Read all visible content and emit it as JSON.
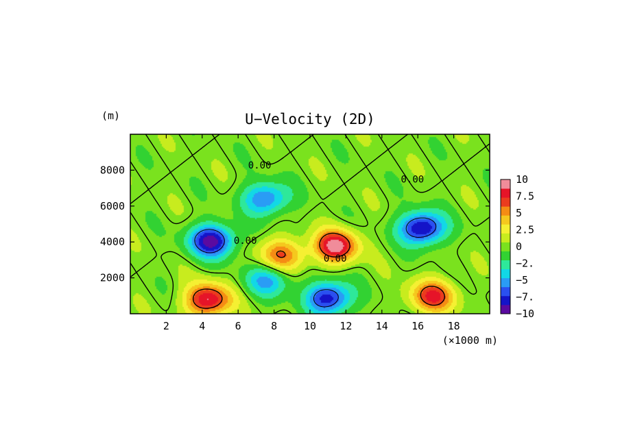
{
  "chart_data": {
    "type": "heatmap",
    "title": "U−Velocity (2D)",
    "ylabel": "(m)",
    "xlabel": "(×1000 m)",
    "xlim": [
      0,
      20
    ],
    "ylim": [
      0,
      10000
    ],
    "x_ticks": [
      2,
      4,
      6,
      8,
      10,
      12,
      14,
      16,
      18
    ],
    "x_tick_labels": [
      "2",
      "4",
      "6",
      "8",
      "10",
      "12",
      "14",
      "16",
      "18"
    ],
    "y_ticks": [
      2000,
      4000,
      6000,
      8000
    ],
    "y_tick_labels": [
      "2000",
      "4000",
      "6000",
      "8000"
    ],
    "colorbar": {
      "range": [
        -10,
        10
      ],
      "tick_labels": [
        "10",
        "7.5",
        "5",
        "2.5",
        "0",
        "−2.",
        "−5",
        "−7.",
        "−10"
      ],
      "tick_values": [
        10,
        7.5,
        5,
        2.5,
        0,
        -2.5,
        -5,
        -7.5,
        -10
      ]
    },
    "contour_labels": [
      {
        "text": "0.00",
        "x": 7.2,
        "y": 8100
      },
      {
        "text": "0.00",
        "x": 15.7,
        "y": 7300
      },
      {
        "text": "0.00",
        "x": 6.4,
        "y": 3900
      },
      {
        "text": "0.00",
        "x": 11.4,
        "y": 2900
      }
    ],
    "features": [
      {
        "kind": "min",
        "x": 4.5,
        "y": 4100,
        "value": -9.5
      },
      {
        "kind": "min",
        "x": 16.2,
        "y": 4800,
        "value": -9.5
      },
      {
        "kind": "min",
        "x": 11.0,
        "y": 900,
        "value": -8.5
      },
      {
        "kind": "min",
        "x": 7.5,
        "y": 6450,
        "value": -6.5
      },
      {
        "kind": "min",
        "x": 7.6,
        "y": 1900,
        "value": -5.0
      },
      {
        "kind": "max",
        "x": 11.4,
        "y": 3800,
        "value": 9.5
      },
      {
        "kind": "max",
        "x": 4.3,
        "y": 800,
        "value": 9.0
      },
      {
        "kind": "max",
        "x": 16.8,
        "y": 1000,
        "value": 7.5
      },
      {
        "kind": "max",
        "x": 8.4,
        "y": 3300,
        "value": 6.0
      }
    ]
  }
}
